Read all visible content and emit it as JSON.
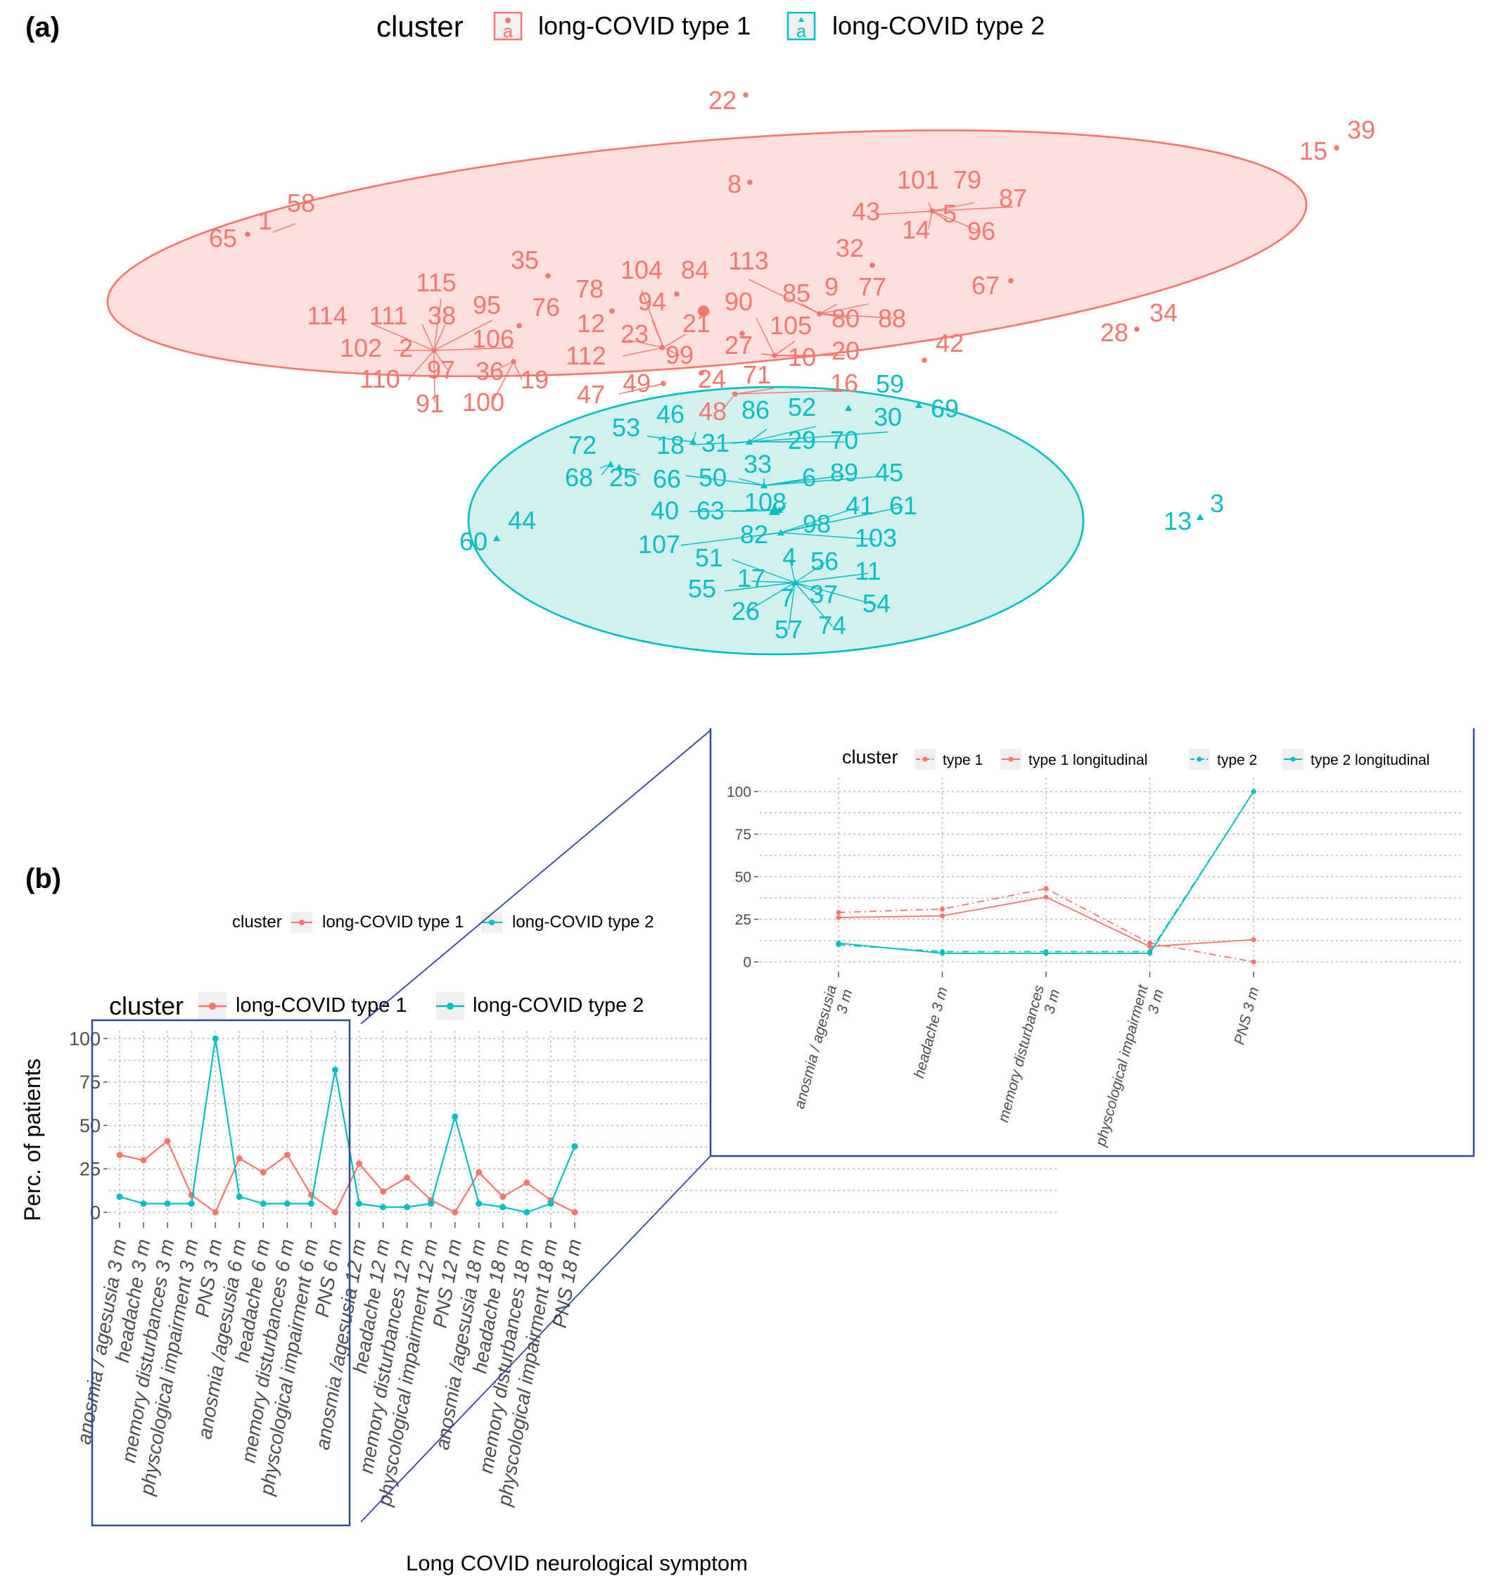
{
  "colors": {
    "type1": "#F8766D",
    "type2": "#00BFC4",
    "ellipse1_fill": "#FDE0DD",
    "ellipse2_fill": "#D3F0F1",
    "overlap_fill": "#D2DADB",
    "box": "#2E4A9E",
    "grid": "#BDBDBD"
  },
  "panel_a": {
    "label": "(a)",
    "legend_title": "cluster",
    "legend_items": [
      {
        "key": "type1",
        "label": "long-COVID type 1",
        "glyph": "a"
      },
      {
        "key": "type2",
        "label": "long-COVID type 2",
        "glyph": "a"
      }
    ],
    "labels_type1": [
      "22",
      "15",
      "39",
      "8",
      "101",
      "79",
      "43",
      "87",
      "5",
      "14",
      "96",
      "65",
      "1",
      "58",
      "32",
      "35",
      "104",
      "84",
      "113",
      "78",
      "67",
      "85",
      "9",
      "77",
      "115",
      "94",
      "90",
      "95",
      "76",
      "80",
      "88",
      "114",
      "111",
      "38",
      "12",
      "23",
      "21",
      "105",
      "106",
      "102",
      "2",
      "112",
      "27",
      "10",
      "20",
      "28",
      "34",
      "42",
      "99",
      "110",
      "97",
      "36",
      "19",
      "49",
      "71",
      "47",
      "24",
      "16",
      "91",
      "100",
      "48"
    ],
    "labels_type2": [
      "59",
      "69",
      "46",
      "86",
      "52",
      "53",
      "30",
      "18",
      "31",
      "29",
      "70",
      "72",
      "33",
      "68",
      "25",
      "66",
      "50",
      "6",
      "89",
      "45",
      "108",
      "40",
      "63",
      "98",
      "41",
      "61",
      "13",
      "3",
      "44",
      "107",
      "82",
      "103",
      "60",
      "51",
      "4",
      "56",
      "11",
      "55",
      "17",
      "37",
      "54",
      "7",
      "26",
      "57",
      "74"
    ]
  },
  "panel_b": {
    "label": "(b)",
    "floating_legend": {
      "title": "cluster",
      "items": [
        "long-COVID type 1",
        "long-COVID type 2"
      ]
    },
    "zoom_hint": "first five symptoms (3 m) highlighted and enlarged in inset"
  },
  "chart_data": [
    {
      "type": "line",
      "title": "",
      "legend_title": "cluster",
      "xlabel": "Long COVID neurological symptom",
      "ylabel": "Perc. of patients",
      "ylim": [
        0,
        100
      ],
      "yticks": [
        0,
        25,
        50,
        75,
        100
      ],
      "categories": [
        "anosmia / agesusia 3 m",
        "headache 3 m",
        "memory disturbances 3 m",
        "physcological impairment 3 m",
        "PNS 3 m",
        "anosmia /agesusia 6 m",
        "headache 6 m",
        "memory disturbances 6 m",
        "physcological impairment 6 m",
        "PNS 6 m",
        "anosmia /agesusia 12 m",
        "headache 12 m",
        "memory disturbances 12 m",
        "physcological impairment 12 m",
        "PNS 12 m",
        "anosmia /agesusia 18 m",
        "headache 18 m",
        "memory disturbances 18 m",
        "physcological impairment 18 m",
        "PNS 18 m"
      ],
      "series": [
        {
          "name": "long-COVID type 1",
          "color_key": "type1",
          "values": [
            33,
            30,
            41,
            10,
            0,
            31,
            23,
            33,
            10,
            0,
            28,
            12,
            20,
            7,
            0,
            23,
            9,
            17,
            7,
            0
          ]
        },
        {
          "name": "long-COVID type 2",
          "color_key": "type2",
          "values": [
            9,
            5,
            5,
            5,
            100,
            9,
            5,
            5,
            5,
            82,
            5,
            3,
            3,
            5,
            55,
            5,
            3,
            0,
            5,
            38
          ]
        }
      ]
    },
    {
      "type": "line",
      "title": "",
      "legend_title": "cluster",
      "ylim": [
        0,
        100
      ],
      "yticks": [
        0,
        25,
        50,
        75,
        100
      ],
      "categories": [
        "anosmia / agesusia 3 m",
        "headache 3 m",
        "memory disturbances 3 m",
        "physcological impairment 3 m",
        "PNS 3 m"
      ],
      "series": [
        {
          "name": "type 1",
          "color_key": "type1",
          "dashed": true,
          "values": [
            29,
            31,
            43,
            11,
            0
          ]
        },
        {
          "name": "type 1 longitudinal",
          "color_key": "type1",
          "dashed": false,
          "values": [
            26,
            27,
            38,
            9,
            13
          ]
        },
        {
          "name": "type 2",
          "color_key": "type2",
          "dashed": true,
          "values": [
            10,
            6,
            6,
            6,
            100
          ]
        },
        {
          "name": "type 2 longitudinal",
          "color_key": "type2",
          "dashed": false,
          "values": [
            11,
            5,
            5,
            5,
            100
          ]
        }
      ]
    }
  ]
}
